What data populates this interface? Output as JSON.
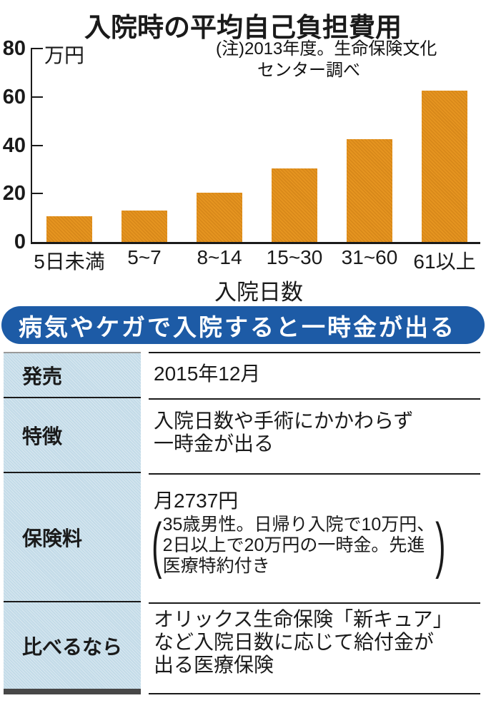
{
  "chart": {
    "title": "入院時の平均自己負担費用",
    "note_line1": "(注)2013年度。生命保険文化",
    "note_line2": "センター調べ",
    "unit_label": "万円",
    "xlabel": "入院日数",
    "bar_color": "#e59420"
  },
  "chart_data": {
    "type": "bar",
    "title": "入院時の平均自己負担費用",
    "note": "(注)2013年度。生命保険文化センター調べ",
    "categories": [
      "5日未満",
      "5~7",
      "8~14",
      "15~30",
      "31~60",
      "61以上"
    ],
    "values": [
      10.5,
      13,
      20.5,
      30.5,
      42.5,
      62.5
    ],
    "xlabel": "入院日数",
    "ylabel": "万円",
    "ylim": [
      0,
      80
    ],
    "yticks": [
      0,
      20,
      40,
      60,
      80
    ],
    "grid": false,
    "legend": "none"
  },
  "banner": {
    "text": "病気やケガで入院すると一時金が出る",
    "bg_color": "#1d5ba6"
  },
  "table": {
    "rows": [
      {
        "label": "発売",
        "lines": [
          "2015年12月"
        ]
      },
      {
        "label": "特徴",
        "lines": [
          "入院日数や手術にかかわらず",
          "一時金が出る"
        ]
      },
      {
        "label": "保険料",
        "premium": "月2737円",
        "paren_open": "(",
        "paren_close": ")",
        "paren_lines": [
          "35歳男性。日帰り入院で10万円、",
          "2日以上で20万円の一時金。先進",
          "医療特約付き"
        ]
      },
      {
        "label": "比べるなら",
        "lines": [
          "オリックス生命保険「新キュア」",
          "など入院日数に応じて給付金が",
          "出る医療保険"
        ]
      }
    ]
  }
}
